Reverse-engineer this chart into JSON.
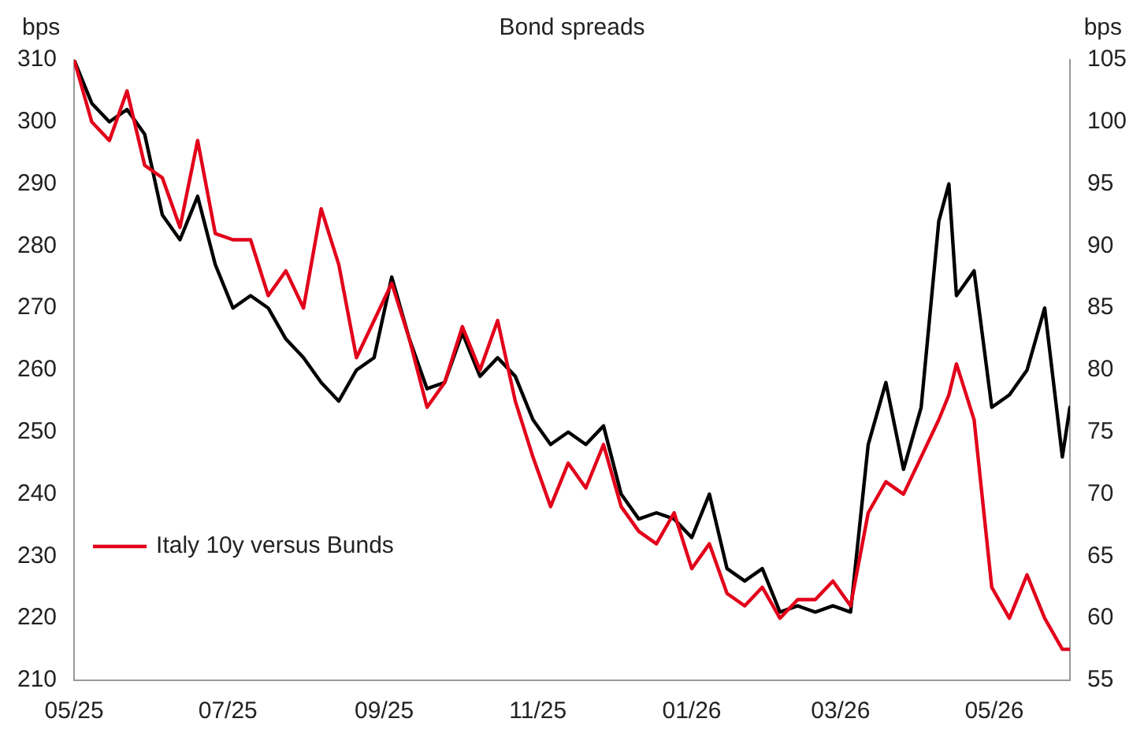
{
  "chart_data": {
    "type": "line",
    "title": "Bond spreads",
    "ylabel": "bps",
    "y2label": "bps",
    "x": [
      "2025-05-01",
      "2025-05-08",
      "2025-05-15",
      "2025-05-22",
      "2025-05-29",
      "2025-06-05",
      "2025-06-12",
      "2025-06-19",
      "2025-06-26",
      "2025-07-03",
      "2025-07-10",
      "2025-07-17",
      "2025-07-24",
      "2025-07-31",
      "2025-08-07",
      "2025-08-14",
      "2025-08-21",
      "2025-08-28",
      "2025-09-04",
      "2025-09-11",
      "2025-09-18",
      "2025-09-25",
      "2025-10-02",
      "2025-10-09",
      "2025-10-16",
      "2025-10-23",
      "2025-10-30",
      "2025-11-06",
      "2025-11-13",
      "2025-11-20",
      "2025-11-27",
      "2025-12-04",
      "2025-12-11",
      "2025-12-18",
      "2025-12-25",
      "2026-01-01",
      "2026-01-08",
      "2026-01-15",
      "2026-01-22",
      "2026-01-29",
      "2026-02-05",
      "2026-02-12",
      "2026-02-19",
      "2026-02-26",
      "2026-03-05",
      "2026-03-12",
      "2026-03-19",
      "2026-03-26",
      "2026-04-02",
      "2026-04-09",
      "2026-04-13",
      "2026-04-16",
      "2026-04-23",
      "2026-04-30",
      "2026-05-07",
      "2026-05-14",
      "2026-05-21",
      "2026-05-28",
      "2026-05-31"
    ],
    "series": [
      {
        "name": "Italy 10y versus Bunds",
        "color": "#e2001a",
        "values": [
          310,
          300,
          297,
          305,
          293,
          291,
          283,
          297,
          282,
          281,
          281,
          272,
          276,
          270,
          286,
          277,
          262,
          268,
          274,
          265,
          254,
          258,
          267,
          260,
          268,
          255,
          246,
          238,
          245,
          241,
          248,
          238,
          234,
          232,
          237,
          228,
          232,
          224,
          222,
          225,
          220,
          223,
          223,
          226,
          222,
          237,
          242,
          240,
          246,
          252,
          256,
          261,
          252,
          225,
          220,
          227,
          220,
          215,
          215
        ]
      },
      {
        "color": "#000000",
        "axis": "y2",
        "values": [
          105,
          101.5,
          100,
          101,
          99,
          92.5,
          90.5,
          94,
          88.5,
          85,
          86,
          85,
          82.5,
          81,
          79,
          77.5,
          80,
          81,
          87.5,
          82.5,
          78.5,
          79,
          83,
          79.5,
          81,
          79.5,
          76,
          74,
          75,
          74,
          75.5,
          70,
          68,
          68.5,
          68,
          66.5,
          70,
          64,
          63,
          64,
          60.5,
          61,
          60.5,
          61,
          60.5,
          74,
          79,
          72,
          77,
          92,
          95,
          86,
          88,
          77,
          78,
          80,
          85,
          73,
          77
        ]
      }
    ],
    "xlim": [
      "2025-05-01",
      "2026-05-31"
    ],
    "xticks": [
      {
        "value": "2025-05-01",
        "label": "05/25"
      },
      {
        "value": "2025-07-01",
        "label": "07/25"
      },
      {
        "value": "2025-09-01",
        "label": "09/25"
      },
      {
        "value": "2025-11-01",
        "label": "11/25"
      },
      {
        "value": "2026-01-01",
        "label": "01/26"
      },
      {
        "value": "2026-03-01",
        "label": "03/26"
      },
      {
        "value": "2026-05-01",
        "label": "05/26"
      }
    ],
    "ylim": [
      210,
      310
    ],
    "yticks": [
      210,
      220,
      230,
      240,
      250,
      260,
      270,
      280,
      290,
      300,
      310
    ],
    "y2lim": [
      55,
      105
    ],
    "y2ticks": [
      55,
      60,
      65,
      70,
      75,
      80,
      85,
      90,
      95,
      100,
      105
    ],
    "grid": false,
    "legend": "bottom left",
    "marker": "none",
    "line_style": "solid"
  }
}
